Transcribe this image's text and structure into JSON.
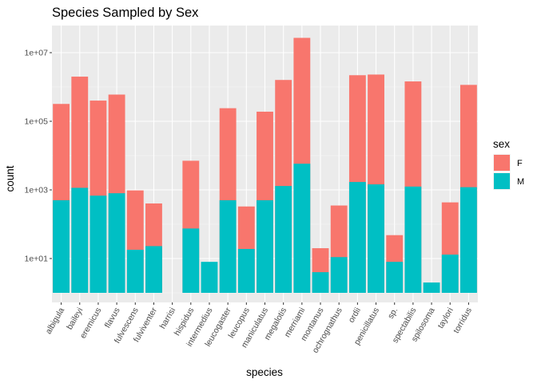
{
  "chart_data": {
    "type": "bar",
    "stacked": true,
    "title": "Species Sampled by Sex",
    "xlabel": "species",
    "ylabel": "count",
    "y_scale": "log10",
    "ylim": [
      1,
      50000000
    ],
    "y_ticks": [
      10,
      1000,
      100000,
      10000000
    ],
    "y_tick_labels": [
      "1e+01",
      "1e+03",
      "1e+05",
      "1e+07"
    ],
    "grid": true,
    "panel_background": "#ebebeb",
    "categories": [
      "albigula",
      "baileyi",
      "eremicus",
      "flavus",
      "fulvescens",
      "fulviventer",
      "harrisi",
      "hispidus",
      "intermedius",
      "leucogaster",
      "leucopus",
      "maniculatus",
      "megalotis",
      "merriami",
      "montanus",
      "ochrognathus",
      "ordii",
      "penicillatus",
      "sp.",
      "spectabilis",
      "spilosoma",
      "taylori",
      "torridus"
    ],
    "series": [
      {
        "name": "M",
        "color": "#00BFC4",
        "values": [
          500,
          1150,
          680,
          800,
          18,
          23,
          0,
          75,
          8,
          500,
          19,
          500,
          1300,
          5800,
          4,
          11,
          1700,
          1450,
          8,
          1250,
          2,
          13,
          1200
        ]
      },
      {
        "name": "F",
        "color": "#F8766D",
        "values": [
          320000,
          2000000,
          400000,
          600000,
          950,
          380,
          0,
          7000,
          0,
          240000,
          310,
          190000,
          1600000,
          27000000,
          16,
          340,
          2200000,
          2300000,
          40,
          1450000,
          0,
          420,
          1150000
        ]
      }
    ],
    "legend": {
      "title": "sex",
      "position": "right",
      "entries": [
        "F",
        "M"
      ]
    }
  }
}
